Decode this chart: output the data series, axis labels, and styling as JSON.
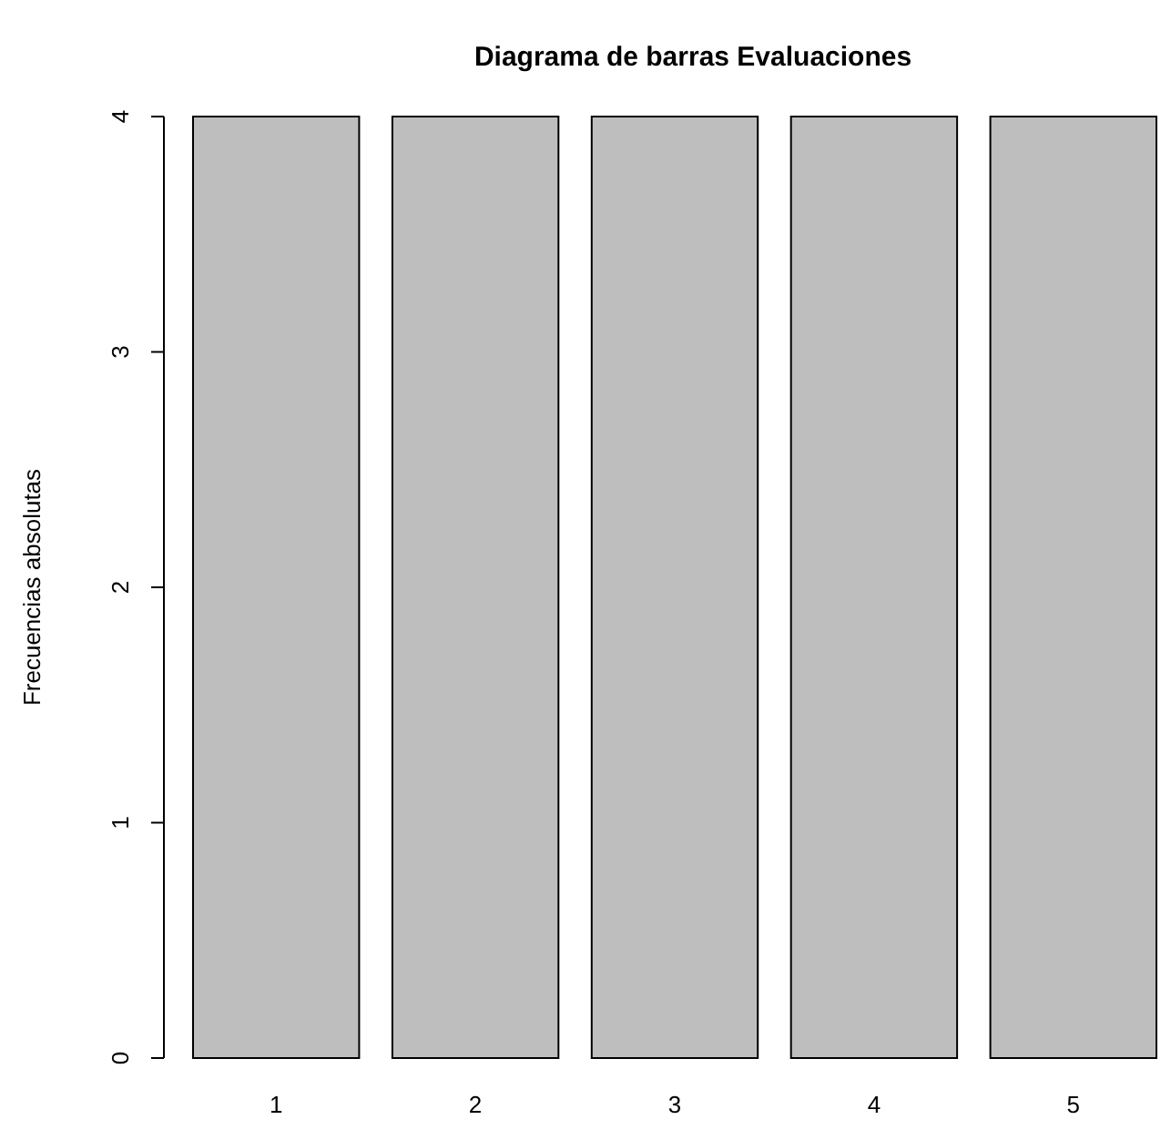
{
  "chart_data": {
    "type": "bar",
    "title": "Diagrama de barras Evaluaciones",
    "ylabel": "Frecuencias absolutas",
    "categories": [
      "1",
      "2",
      "3",
      "4",
      "5"
    ],
    "values": [
      4,
      4,
      4,
      4,
      4
    ],
    "color": "#bebebe",
    "ylim": [
      0,
      4
    ],
    "yticks": [
      0,
      1,
      2,
      3,
      4
    ],
    "grid": false
  }
}
